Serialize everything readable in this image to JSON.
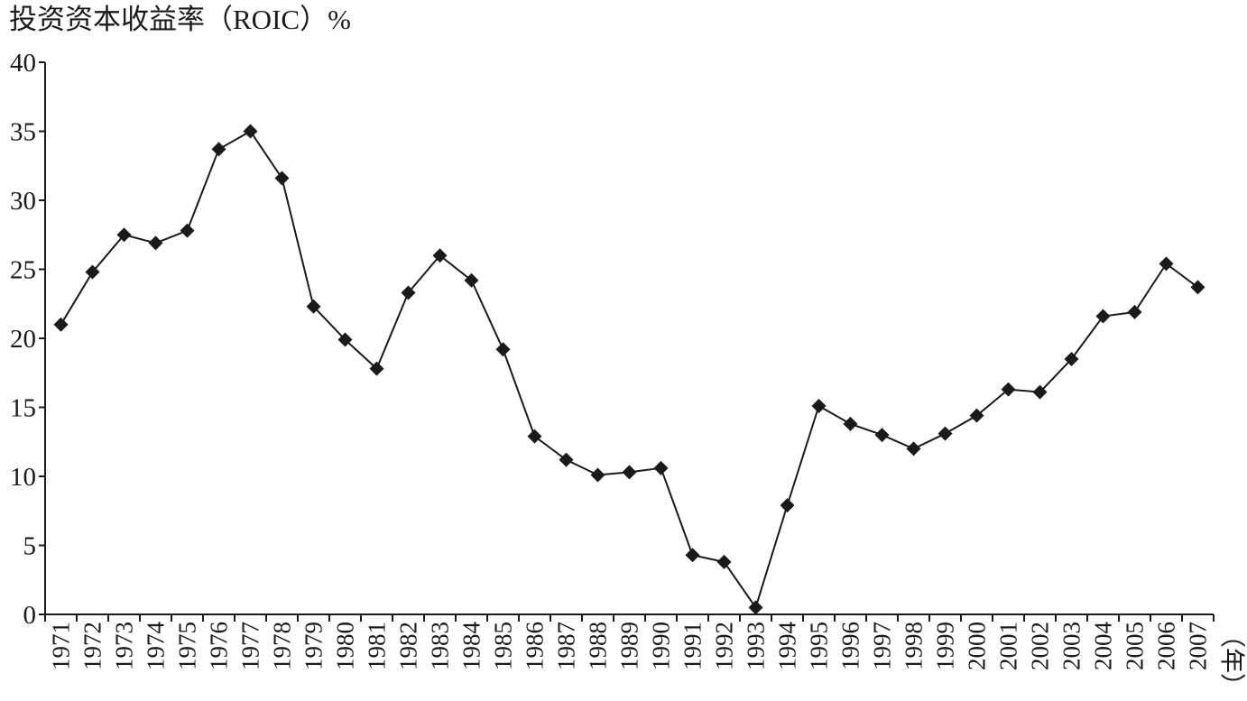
{
  "chart_data": {
    "type": "line",
    "title": "投资资本收益率（ROIC）%",
    "x_unit": "（年）",
    "categories": [
      "1971",
      "1972",
      "1973",
      "1974",
      "1975",
      "1976",
      "1977",
      "1978",
      "1979",
      "1980",
      "1981",
      "1982",
      "1983",
      "1984",
      "1985",
      "1986",
      "1987",
      "1988",
      "1989",
      "1990",
      "1991",
      "1992",
      "1993",
      "1994",
      "1995",
      "1996",
      "1997",
      "1998",
      "1999",
      "2000",
      "2001",
      "2002",
      "2003",
      "2004",
      "2005",
      "2006",
      "2007"
    ],
    "values": [
      21.0,
      24.8,
      27.5,
      26.9,
      27.8,
      33.7,
      35.0,
      31.6,
      22.3,
      19.9,
      17.8,
      23.3,
      26.0,
      24.2,
      19.2,
      12.9,
      11.2,
      10.1,
      10.3,
      10.6,
      4.3,
      3.8,
      0.5,
      7.9,
      15.1,
      13.8,
      13.0,
      12.0,
      13.1,
      14.4,
      16.3,
      16.1,
      18.5,
      21.6,
      21.9,
      25.4,
      23.7
    ],
    "color": "#1a1a1a",
    "ylim": [
      0,
      40
    ],
    "yticks": [
      0,
      5,
      10,
      15,
      20,
      25,
      30,
      35,
      40
    ],
    "grid": false
  }
}
